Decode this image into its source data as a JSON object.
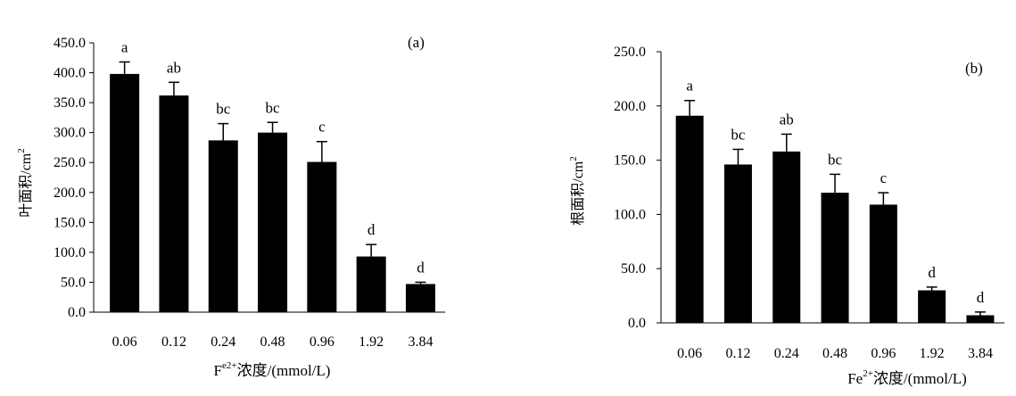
{
  "chart_data": [
    {
      "type": "bar",
      "panel_label": "(a)",
      "categories": [
        "0.06",
        "0.12",
        "0.24",
        "0.48",
        "0.96",
        "1.92",
        "3.84"
      ],
      "values": [
        398,
        362,
        287,
        300,
        251,
        93,
        47
      ],
      "errors": [
        20,
        22,
        28,
        17,
        34,
        20,
        3
      ],
      "significance": [
        "a",
        "ab",
        "bc",
        "bc",
        "c",
        "d",
        "d"
      ],
      "ylabel_main": "叶面积/cm",
      "ylabel_sup": "2",
      "xlabel_main": "F",
      "xlabel_sup": "e2+",
      "xlabel_rest": "浓度/(mmol/L)",
      "yticks": [
        "0.0",
        "50.0",
        "100.0",
        "150.0",
        "200.0",
        "250.0",
        "300.0",
        "350.0",
        "400.0",
        "450.0"
      ],
      "ylim": [
        0,
        450
      ],
      "grid": false,
      "bar_color": "#000000"
    },
    {
      "type": "bar",
      "panel_label": "(b)",
      "categories": [
        "0.06",
        "0.12",
        "0.24",
        "0.48",
        "0.96",
        "1.92",
        "3.84"
      ],
      "values": [
        191,
        146,
        158,
        120,
        109,
        30,
        7
      ],
      "errors": [
        14,
        14,
        16,
        17,
        11,
        3,
        3
      ],
      "significance": [
        "a",
        "bc",
        "ab",
        "bc",
        "c",
        "d",
        "d"
      ],
      "ylabel_main": "根面积/cm",
      "ylabel_sup": "2",
      "xlabel_main": "Fe",
      "xlabel_sup": "2+",
      "xlabel_rest": "浓度/(mmol/L)",
      "yticks": [
        "0.0",
        "50.0",
        "100.0",
        "150.0",
        "200.0",
        "250.0"
      ],
      "ylim": [
        0,
        250
      ],
      "grid": false,
      "bar_color": "#000000"
    }
  ]
}
